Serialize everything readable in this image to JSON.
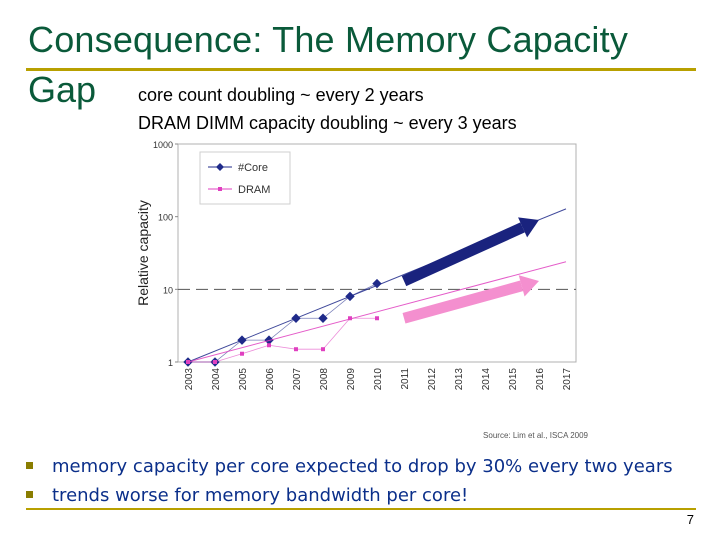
{
  "slide": {
    "title_line1": "Consequence: The Memory Capacity",
    "title_line2": "Gap",
    "subtitle_1": "core count doubling ~ every 2 years",
    "subtitle_2": "DRAM DIMM capacity doubling ~ every 3 years",
    "bullets": [
      "memory capacity per core expected to drop by 30% every two years",
      "trends worse for memory bandwidth per core!"
    ],
    "page_number": "7",
    "colors": {
      "title": "#0a5a3a",
      "rule": "#b8a000",
      "bullet_text": "#0b2f8a"
    }
  },
  "chart_data": {
    "type": "line",
    "ylabel": "Relative capacity",
    "yscale": "log",
    "ylim": [
      1,
      1000
    ],
    "yticks": [
      "1",
      "10",
      "100",
      "1000"
    ],
    "x": [
      "2003",
      "2004",
      "2005",
      "2006",
      "2007",
      "2008",
      "2009",
      "2010",
      "2011",
      "2012",
      "2013",
      "2014",
      "2015",
      "2016",
      "2017"
    ],
    "legend_position": "top-left",
    "source": "Source: Lim et al., ISCA 2009",
    "reference_line_y": 10,
    "series": [
      {
        "name": "#Core",
        "color": "#1f2a8a",
        "marker": "diamond",
        "points": [
          [
            "2003",
            1
          ],
          [
            "2004",
            1
          ],
          [
            "2005",
            2
          ],
          [
            "2006",
            2
          ],
          [
            "2007",
            4
          ],
          [
            "2008",
            4
          ],
          [
            "2009",
            8
          ],
          [
            "2010",
            12
          ]
        ],
        "trend": [
          [
            "2003",
            1
          ],
          [
            "2017",
            128
          ]
        ],
        "projection_arrow": [
          [
            "2011",
            13
          ],
          [
            "2016",
            90
          ]
        ]
      },
      {
        "name": "DRAM",
        "color": "#e040c0",
        "marker": "square",
        "points": [
          [
            "2003",
            1
          ],
          [
            "2004",
            1
          ],
          [
            "2005",
            1.3
          ],
          [
            "2006",
            1.7
          ],
          [
            "2007",
            1.5
          ],
          [
            "2008",
            1.5
          ],
          [
            "2009",
            4
          ],
          [
            "2010",
            4
          ]
        ],
        "trend": [
          [
            "2003",
            1
          ],
          [
            "2017",
            24
          ]
        ],
        "projection_arrow": [
          [
            "2011",
            4
          ],
          [
            "2016",
            13
          ]
        ]
      }
    ]
  }
}
